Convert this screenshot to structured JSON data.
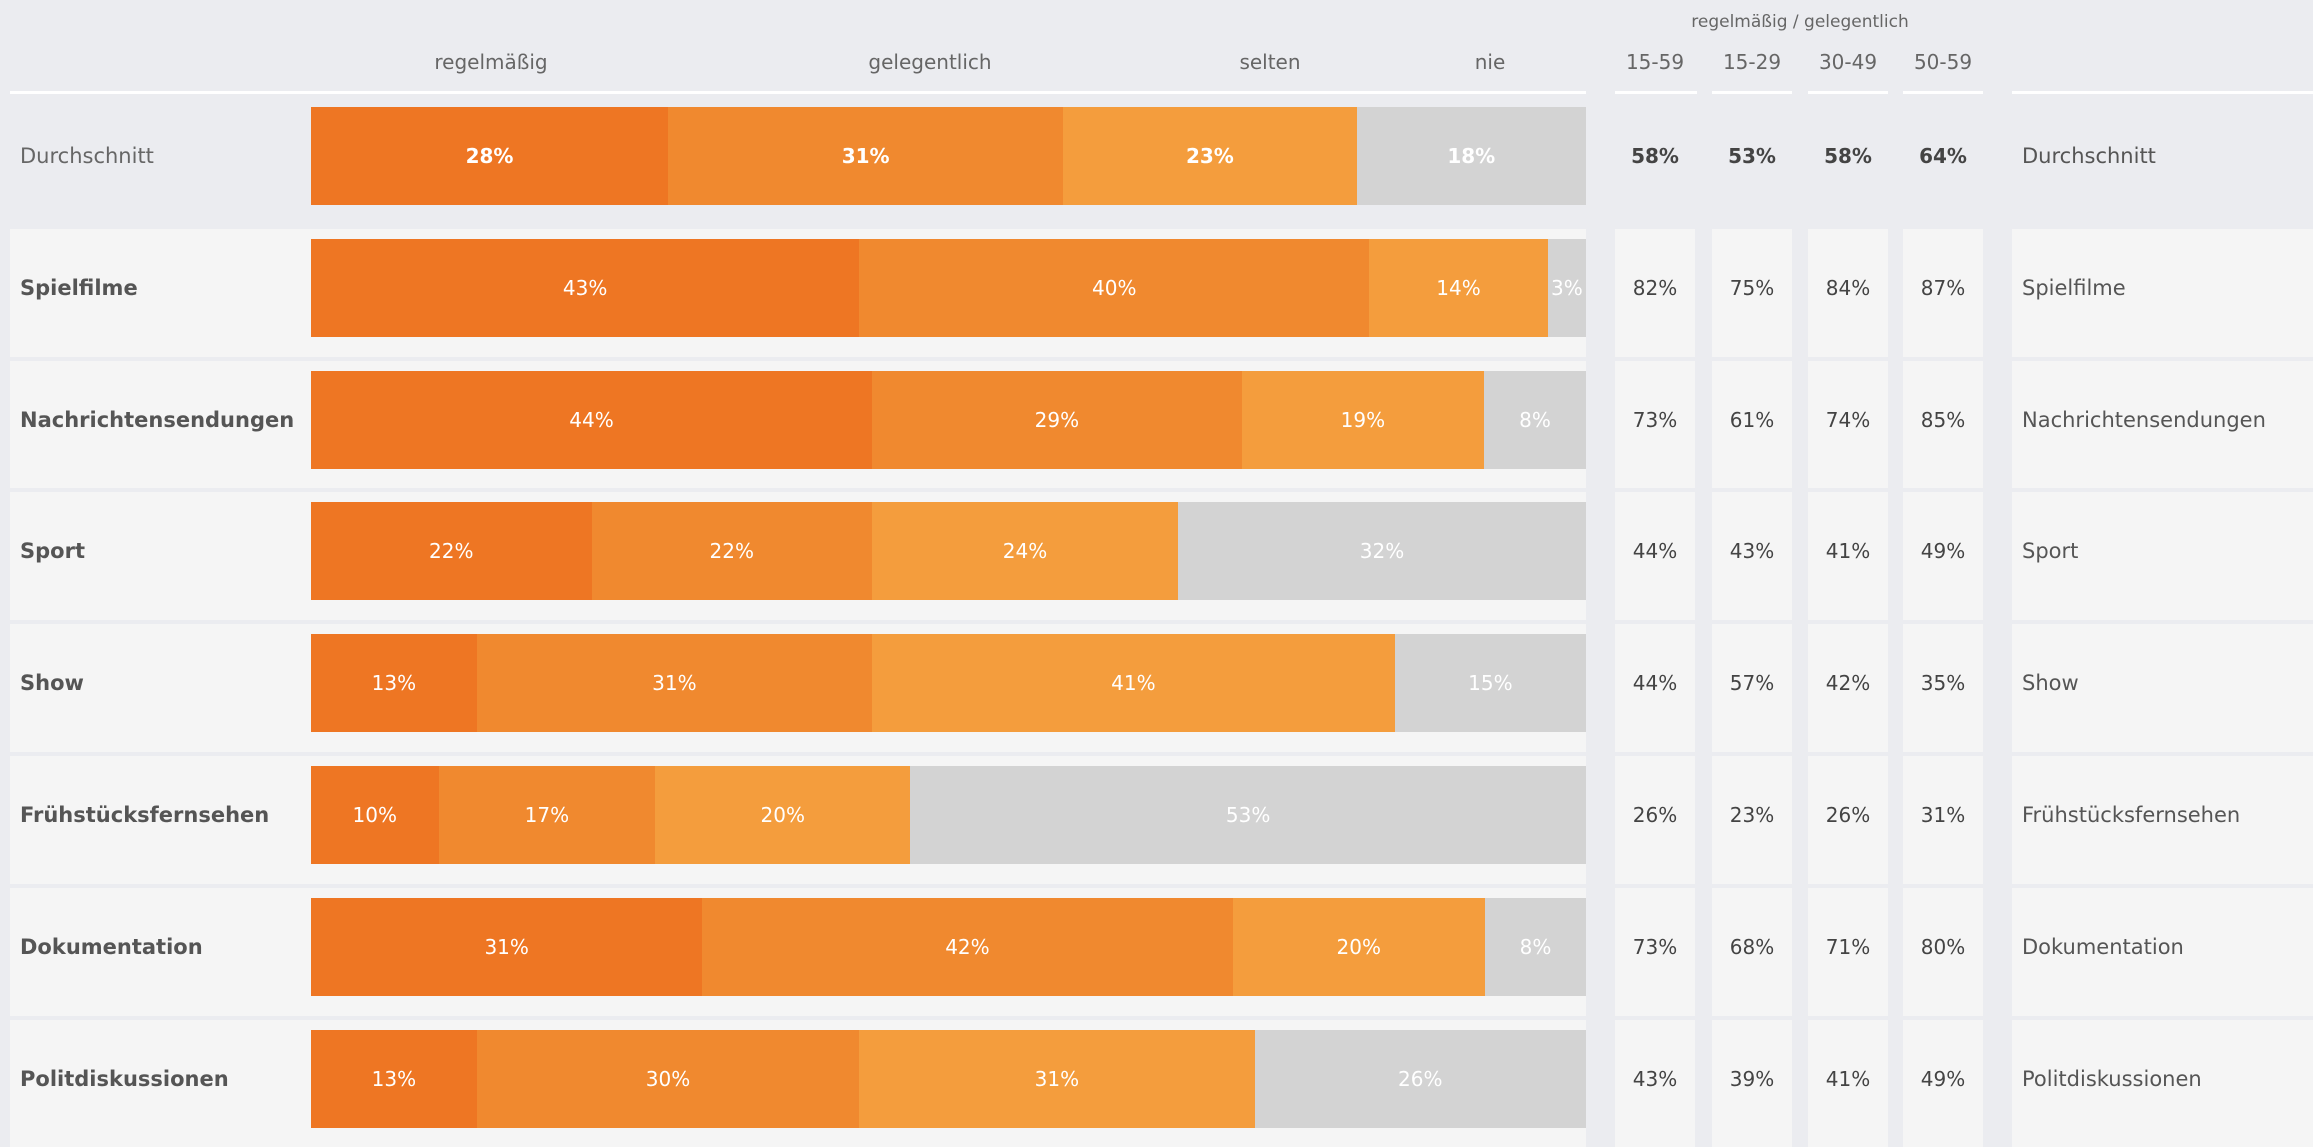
{
  "header": {
    "regelmaessig": "regelmäßig",
    "gelegentlich": "gelegentlich",
    "selten": "selten",
    "nie": "nie",
    "combined": "regelmäßig / gelegentlich",
    "age_groups": [
      "15-59",
      "15-29",
      "30-49",
      "50-59"
    ]
  },
  "colors": {
    "regelmaessig": "#ee7623",
    "gelegentlich": "#f0892f",
    "selten": "#f49d3d",
    "nie": "#d3d3d3"
  },
  "chart_data": {
    "type": "bar",
    "stacked": true,
    "orientation": "horizontal",
    "categories": [
      "Durchschnitt",
      "Spielfilme",
      "Nachrichtensendungen",
      "Sport",
      "Show",
      "Frühstücksfernsehen",
      "Dokumentation",
      "Politdiskussionen"
    ],
    "series": [
      {
        "name": "regelmäßig",
        "values": [
          28,
          43,
          44,
          22,
          13,
          10,
          31,
          13
        ]
      },
      {
        "name": "gelegentlich",
        "values": [
          31,
          40,
          29,
          22,
          31,
          17,
          42,
          30
        ]
      },
      {
        "name": "selten",
        "values": [
          23,
          14,
          19,
          24,
          41,
          20,
          20,
          31
        ]
      },
      {
        "name": "nie",
        "values": [
          18,
          3,
          8,
          32,
          15,
          53,
          8,
          26
        ]
      }
    ],
    "labels": [
      [
        "28%",
        "31%",
        "23%",
        "18%"
      ],
      [
        "43%",
        "40%",
        "14%",
        "3%"
      ],
      [
        "44%",
        "29%",
        "19%",
        "8%"
      ],
      [
        "22%",
        "22%",
        "24%",
        "32%"
      ],
      [
        "13%",
        "31%",
        "41%",
        "15%"
      ],
      [
        "10%",
        "17%",
        "20%",
        "53%"
      ],
      [
        "31%",
        "42%",
        "20%",
        "8%"
      ],
      [
        "13%",
        "30%",
        "31%",
        "26%"
      ]
    ],
    "table": {
      "title": "regelmäßig / gelegentlich",
      "columns": [
        "15-59",
        "15-29",
        "30-49",
        "50-59"
      ],
      "rows": [
        [
          "58%",
          "53%",
          "58%",
          "64%"
        ],
        [
          "82%",
          "75%",
          "84%",
          "87%"
        ],
        [
          "73%",
          "61%",
          "74%",
          "85%"
        ],
        [
          "44%",
          "43%",
          "41%",
          "49%"
        ],
        [
          "44%",
          "57%",
          "42%",
          "35%"
        ],
        [
          "26%",
          "23%",
          "26%",
          "31%"
        ],
        [
          "73%",
          "68%",
          "71%",
          "80%"
        ],
        [
          "43%",
          "39%",
          "41%",
          "49%"
        ]
      ]
    },
    "xlim": [
      0,
      100
    ]
  }
}
